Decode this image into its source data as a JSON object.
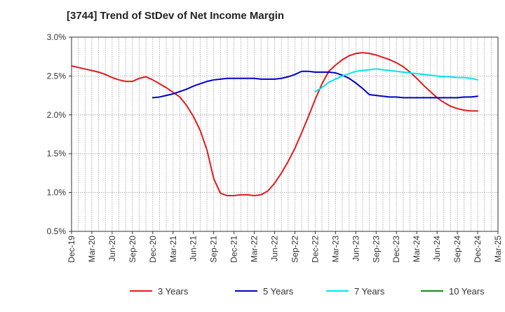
{
  "chart_data": {
    "type": "line",
    "title": "[3744]  Trend of StDev of Net Income Margin",
    "xlabel": "",
    "ylabel": "",
    "x_ticks": [
      "Dec-19",
      "Mar-20",
      "Jun-20",
      "Sep-20",
      "Dec-20",
      "Mar-21",
      "Jun-21",
      "Sep-21",
      "Dec-21",
      "Mar-22",
      "Jun-22",
      "Sep-22",
      "Dec-22",
      "Mar-23",
      "Jun-23",
      "Sep-23",
      "Dec-23",
      "Mar-24",
      "Jun-24",
      "Sep-24",
      "Dec-24",
      "Mar-25"
    ],
    "y_ticks": [
      "0.5%",
      "1.0%",
      "1.5%",
      "2.0%",
      "2.5%",
      "3.0%"
    ],
    "ylim": [
      0.5,
      3.0
    ],
    "y_unit": "%",
    "grid": true,
    "legend_position": "bottom",
    "series": [
      {
        "name": "3 Years",
        "color": "#e31a1c",
        "x": [
          "Dec-19",
          "Jan-20",
          "Feb-20",
          "Mar-20",
          "Apr-20",
          "May-20",
          "Jun-20",
          "Jul-20",
          "Aug-20",
          "Sep-20",
          "Oct-20",
          "Nov-20",
          "Dec-20",
          "Jan-21",
          "Feb-21",
          "Mar-21",
          "Apr-21",
          "May-21",
          "Jun-21",
          "Jul-21",
          "Aug-21",
          "Sep-21",
          "Oct-21",
          "Nov-21",
          "Dec-21",
          "Jan-22",
          "Feb-22",
          "Mar-22",
          "Apr-22",
          "May-22",
          "Jun-22",
          "Jul-22",
          "Aug-22",
          "Sep-22",
          "Oct-22",
          "Nov-22",
          "Dec-22",
          "Jan-23",
          "Feb-23",
          "Mar-23",
          "Apr-23",
          "May-23",
          "Jun-23",
          "Jul-23",
          "Aug-23",
          "Sep-23",
          "Oct-23",
          "Nov-23",
          "Dec-23",
          "Jan-24",
          "Feb-24",
          "Mar-24",
          "Apr-24",
          "May-24",
          "Jun-24",
          "Jul-24",
          "Aug-24",
          "Sep-24",
          "Oct-24",
          "Nov-24",
          "Dec-24"
        ],
        "values": [
          2.63,
          2.61,
          2.59,
          2.57,
          2.55,
          2.52,
          2.48,
          2.45,
          2.43,
          2.43,
          2.47,
          2.49,
          2.45,
          2.4,
          2.35,
          2.29,
          2.23,
          2.12,
          1.98,
          1.8,
          1.55,
          1.18,
          0.99,
          0.96,
          0.96,
          0.97,
          0.97,
          0.96,
          0.97,
          1.02,
          1.12,
          1.25,
          1.4,
          1.57,
          1.77,
          1.98,
          2.2,
          2.4,
          2.56,
          2.64,
          2.71,
          2.76,
          2.79,
          2.8,
          2.79,
          2.77,
          2.74,
          2.71,
          2.67,
          2.62,
          2.55,
          2.47,
          2.38,
          2.3,
          2.22,
          2.16,
          2.11,
          2.08,
          2.06,
          2.05,
          2.05
        ]
      },
      {
        "name": "5 Years",
        "color": "#0000cc",
        "x": [
          "Dec-20",
          "Jan-21",
          "Feb-21",
          "Mar-21",
          "Apr-21",
          "May-21",
          "Jun-21",
          "Jul-21",
          "Aug-21",
          "Sep-21",
          "Oct-21",
          "Nov-21",
          "Dec-21",
          "Jan-22",
          "Feb-22",
          "Mar-22",
          "Apr-22",
          "May-22",
          "Jun-22",
          "Jul-22",
          "Aug-22",
          "Sep-22",
          "Oct-22",
          "Nov-22",
          "Dec-22",
          "Jan-23",
          "Feb-23",
          "Mar-23",
          "Apr-23",
          "May-23",
          "Jun-23",
          "Jul-23",
          "Aug-23",
          "Sep-23",
          "Oct-23",
          "Nov-23",
          "Dec-23",
          "Jan-24",
          "Feb-24",
          "Mar-24",
          "Apr-24",
          "May-24",
          "Jun-24",
          "Jul-24",
          "Aug-24",
          "Sep-24",
          "Oct-24",
          "Nov-24",
          "Dec-24"
        ],
        "values": [
          2.22,
          2.23,
          2.25,
          2.27,
          2.3,
          2.33,
          2.37,
          2.4,
          2.43,
          2.45,
          2.46,
          2.47,
          2.47,
          2.47,
          2.47,
          2.47,
          2.46,
          2.46,
          2.46,
          2.47,
          2.49,
          2.52,
          2.56,
          2.56,
          2.55,
          2.55,
          2.55,
          2.54,
          2.51,
          2.47,
          2.41,
          2.34,
          2.26,
          2.25,
          2.24,
          2.23,
          2.23,
          2.22,
          2.22,
          2.22,
          2.22,
          2.22,
          2.22,
          2.22,
          2.22,
          2.22,
          2.23,
          2.23,
          2.24
        ]
      },
      {
        "name": "7 Years",
        "color": "#00e5ee",
        "x": [
          "Dec-22",
          "Jan-23",
          "Feb-23",
          "Mar-23",
          "Apr-23",
          "May-23",
          "Jun-23",
          "Jul-23",
          "Aug-23",
          "Sep-23",
          "Oct-23",
          "Nov-23",
          "Dec-23",
          "Jan-24",
          "Feb-24",
          "Mar-24",
          "Apr-24",
          "May-24",
          "Jun-24",
          "Jul-24",
          "Aug-24",
          "Sep-24",
          "Oct-24",
          "Nov-24",
          "Dec-24"
        ],
        "values": [
          2.3,
          2.35,
          2.42,
          2.46,
          2.5,
          2.53,
          2.56,
          2.57,
          2.58,
          2.59,
          2.58,
          2.57,
          2.56,
          2.55,
          2.54,
          2.53,
          2.52,
          2.51,
          2.5,
          2.49,
          2.49,
          2.48,
          2.48,
          2.47,
          2.45
        ]
      },
      {
        "name": "10 Years",
        "color": "#1a8a1a",
        "x": [],
        "values": []
      }
    ]
  }
}
